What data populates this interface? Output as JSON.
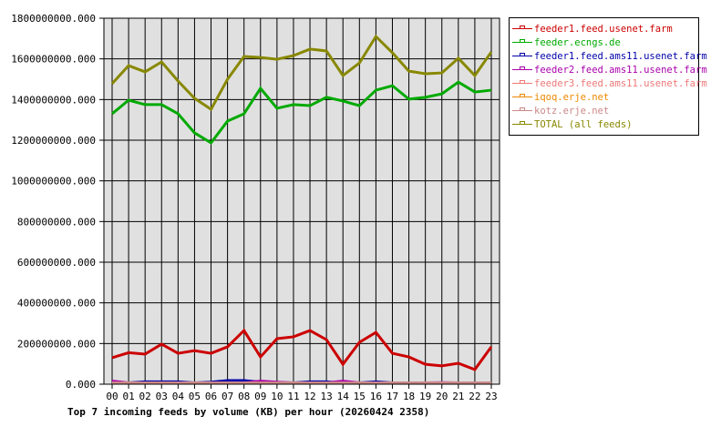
{
  "chart_data": {
    "type": "line",
    "title": "Top 7 incoming feeds by volume (KB) per hour (20260424 2358)",
    "xlabel": "",
    "ylabel": "",
    "ylim": [
      0,
      1800000000
    ],
    "yticks": [
      "0.000",
      "200000000.000",
      "400000000.000",
      "600000000.000",
      "800000000.000",
      "1000000000.000",
      "1200000000.000",
      "1400000000.000",
      "1600000000.000",
      "1800000000.000"
    ],
    "ytick_values": [
      0,
      200000000,
      400000000,
      600000000,
      800000000,
      1000000000,
      1200000000,
      1400000000,
      1600000000,
      1800000000
    ],
    "categories": [
      "00",
      "01",
      "02",
      "03",
      "04",
      "05",
      "06",
      "07",
      "08",
      "09",
      "10",
      "11",
      "12",
      "13",
      "14",
      "15",
      "16",
      "17",
      "18",
      "19",
      "20",
      "21",
      "22",
      "23"
    ],
    "grid": true,
    "legend_position": "right",
    "series": [
      {
        "name": "feeder1.feed.usenet.farm",
        "color": "#cc0000",
        "values": [
          130000000,
          155000000,
          148000000,
          197000000,
          152000000,
          165000000,
          152000000,
          184000000,
          264000000,
          134000000,
          224000000,
          233000000,
          264000000,
          219000000,
          98000000,
          206000000,
          255000000,
          152000000,
          134000000,
          98000000,
          90000000,
          103000000,
          72000000,
          184000000
        ]
      },
      {
        "name": "feeder.ecngs.de",
        "color": "#00aa00",
        "values": [
          1330000000,
          1397000000,
          1375000000,
          1375000000,
          1330000000,
          1236000000,
          1187000000,
          1294000000,
          1330000000,
          1455000000,
          1357000000,
          1375000000,
          1370000000,
          1411000000,
          1393000000,
          1370000000,
          1446000000,
          1468000000,
          1402000000,
          1411000000,
          1428000000,
          1486000000,
          1437000000,
          1446000000
        ]
      },
      {
        "name": "feeder1.feed.ams11.usenet.farm",
        "color": "#0000aa",
        "values": [
          5000000,
          5000000,
          12000000,
          12000000,
          12000000,
          5000000,
          10000000,
          18000000,
          18000000,
          10000000,
          8000000,
          5000000,
          12000000,
          12000000,
          5000000,
          5000000,
          12000000,
          3000000,
          3000000,
          3000000,
          3000000,
          3000000,
          3000000,
          3000000
        ]
      },
      {
        "name": "feeder2.feed.ams11.usenet.farm",
        "color": "#aa00aa",
        "values": [
          15000000,
          5000000,
          5000000,
          5000000,
          5000000,
          5000000,
          5000000,
          5000000,
          5000000,
          15000000,
          10000000,
          5000000,
          5000000,
          5000000,
          15000000,
          5000000,
          5000000,
          3000000,
          3000000,
          3000000,
          8000000,
          3000000,
          3000000,
          3000000
        ]
      },
      {
        "name": "feeder3.feed.ams11.usenet.farm",
        "color": "#ee7777",
        "values": [
          2000000,
          2000000,
          2000000,
          2000000,
          2000000,
          2000000,
          2000000,
          2000000,
          2000000,
          2000000,
          2000000,
          2000000,
          2000000,
          2000000,
          2000000,
          2000000,
          2000000,
          2000000,
          2000000,
          2000000,
          2000000,
          2000000,
          2000000,
          2000000
        ]
      },
      {
        "name": "iqoq.erje.net",
        "color": "#ee8800",
        "values": [
          1000000,
          1000000,
          1000000,
          1000000,
          1000000,
          1000000,
          1000000,
          1000000,
          1000000,
          1000000,
          1000000,
          1000000,
          1000000,
          1000000,
          1000000,
          1000000,
          1000000,
          1000000,
          1000000,
          1000000,
          1000000,
          1000000,
          1000000,
          1000000
        ]
      },
      {
        "name": "kotz.erje.net",
        "color": "#cc8888",
        "values": [
          2000000,
          2000000,
          2000000,
          2000000,
          2000000,
          2000000,
          2000000,
          2000000,
          2000000,
          2000000,
          2000000,
          2000000,
          2000000,
          2000000,
          2000000,
          2000000,
          2000000,
          2000000,
          2000000,
          2000000,
          2000000,
          2000000,
          2000000,
          2000000
        ]
      },
      {
        "name": "TOTAL (all feeds)",
        "color": "#888800",
        "values": [
          1478000000,
          1567000000,
          1536000000,
          1585000000,
          1491000000,
          1406000000,
          1352000000,
          1500000000,
          1612000000,
          1607000000,
          1598000000,
          1616000000,
          1648000000,
          1639000000,
          1518000000,
          1580000000,
          1710000000,
          1630000000,
          1540000000,
          1527000000,
          1531000000,
          1603000000,
          1518000000,
          1634000000
        ]
      }
    ]
  }
}
